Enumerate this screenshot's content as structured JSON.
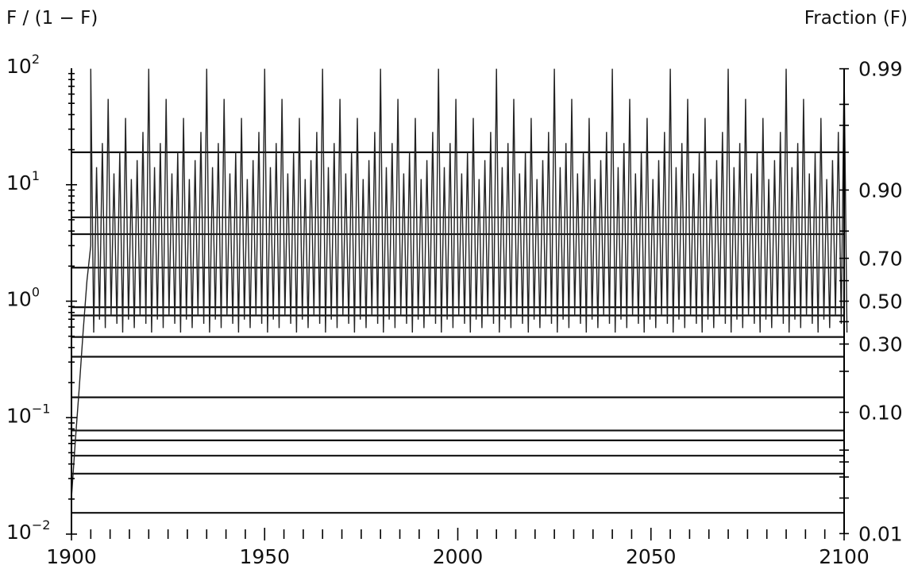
{
  "chart_data": {
    "type": "line",
    "title": "",
    "left_axis": {
      "label": "F / (1 − F)",
      "scale": "log",
      "range": [
        0.01,
        100
      ],
      "ticks": [
        {
          "value": 100,
          "base": "10",
          "exp": "2"
        },
        {
          "value": 10,
          "base": "10",
          "exp": "1"
        },
        {
          "value": 1,
          "base": "10",
          "exp": "0"
        },
        {
          "value": 0.1,
          "base": "10",
          "exp": "−1"
        },
        {
          "value": 0.01,
          "base": "10",
          "exp": "−2"
        }
      ]
    },
    "right_axis": {
      "label": "Fraction (F)",
      "scale": "logit",
      "ticks": [
        {
          "value": 0.99,
          "label": "0.99"
        },
        {
          "value": 0.9,
          "label": "0.90"
        },
        {
          "value": 0.7,
          "label": "0.70"
        },
        {
          "value": 0.5,
          "label": "0.50"
        },
        {
          "value": 0.3,
          "label": "0.30"
        },
        {
          "value": 0.1,
          "label": "0.10"
        },
        {
          "value": 0.01,
          "label": "0.01"
        }
      ]
    },
    "x_axis": {
      "range": [
        1900,
        2100
      ],
      "ticks": [
        1900,
        1950,
        2000,
        2050,
        2100
      ],
      "tick_labels": [
        "1900",
        "1950",
        "2000",
        "2050",
        "2100"
      ]
    },
    "reference_lines_F": [
      0.015,
      0.032,
      0.045,
      0.06,
      0.072,
      0.13,
      0.25,
      0.33,
      0.43,
      0.47,
      0.66,
      0.79,
      0.84,
      0.95
    ],
    "series": [
      {
        "style": "dense oscillating trace between ~0.33 and ~0.99 after a steep rise from ~0.02 at 1900",
        "x": [
          1900,
          1901,
          1902,
          1903,
          1904,
          1905
        ],
        "y": [
          0.02,
          0.06,
          0.15,
          0.35,
          0.6,
          0.75
        ],
        "oscillation": {
          "start": 1905,
          "end": 2100,
          "step_years": 1.5,
          "low": 0.35,
          "high": 0.99
        }
      }
    ],
    "grid": false,
    "legend": "none"
  }
}
